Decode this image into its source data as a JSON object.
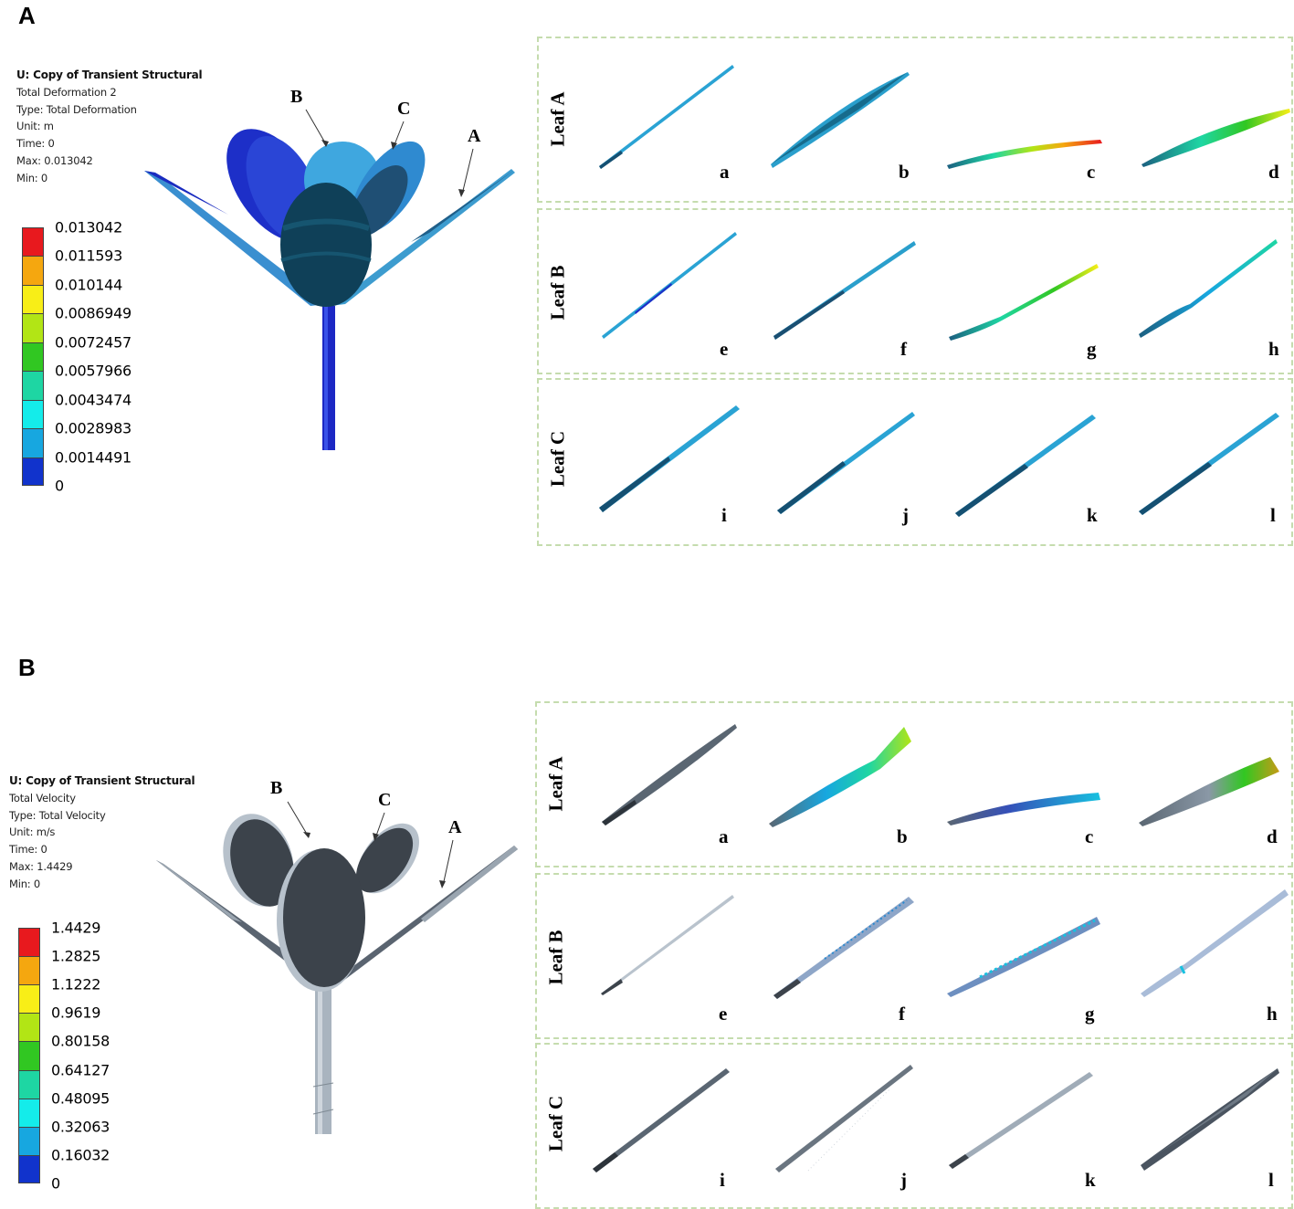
{
  "panels": [
    {
      "letter": "A",
      "info": {
        "title": "U: Copy of Transient Structural",
        "result": "Total Deformation 2",
        "type": "Type: Total Deformation",
        "unit": "Unit: m",
        "time": "Time: 0",
        "max": "Max: 0.013042",
        "min": "Min: 0"
      },
      "legend": {
        "values": [
          "0.013042",
          "0.011593",
          "0.010144",
          "0.0086949",
          "0.0072457",
          "0.0057966",
          "0.0043474",
          "0.0028983",
          "0.0014491",
          "0"
        ],
        "colors": [
          "#e8191e",
          "#f5a70f",
          "#f8ee17",
          "#b2e515",
          "#31c722",
          "#1ed6a3",
          "#14ecea",
          "#17a7e0",
          "#1133cc"
        ]
      },
      "model_labels": {
        "b": "B",
        "c": "C",
        "a": "A"
      },
      "rows": [
        {
          "label": "Leaf A",
          "cells": [
            "a",
            "b",
            "c",
            "d"
          ]
        },
        {
          "label": "Leaf B",
          "cells": [
            "e",
            "f",
            "g",
            "h"
          ]
        },
        {
          "label": "Leaf C",
          "cells": [
            "i",
            "j",
            "k",
            "l"
          ]
        }
      ]
    },
    {
      "letter": "B",
      "info": {
        "title": "U: Copy of Transient Structural",
        "result": "Total Velocity",
        "type": "Type: Total Velocity",
        "unit": "Unit: m/s",
        "time": "Time: 0",
        "max": "Max: 1.4429",
        "min": "Min: 0"
      },
      "legend": {
        "values": [
          "1.4429",
          "1.2825",
          "1.1222",
          "0.9619",
          "0.80158",
          "0.64127",
          "0.48095",
          "0.32063",
          "0.16032",
          "0"
        ],
        "colors": [
          "#e8191e",
          "#f5a70f",
          "#f8ee17",
          "#b2e515",
          "#31c722",
          "#1ed6a3",
          "#14ecea",
          "#17a7e0",
          "#1133cc"
        ]
      },
      "model_labels": {
        "b": "B",
        "c": "C",
        "a": "A"
      },
      "rows": [
        {
          "label": "Leaf A",
          "cells": [
            "a",
            "b",
            "c",
            "d"
          ]
        },
        {
          "label": "Leaf B",
          "cells": [
            "e",
            "f",
            "g",
            "h"
          ]
        },
        {
          "label": "Leaf C",
          "cells": [
            "i",
            "j",
            "k",
            "l"
          ]
        }
      ]
    }
  ]
}
